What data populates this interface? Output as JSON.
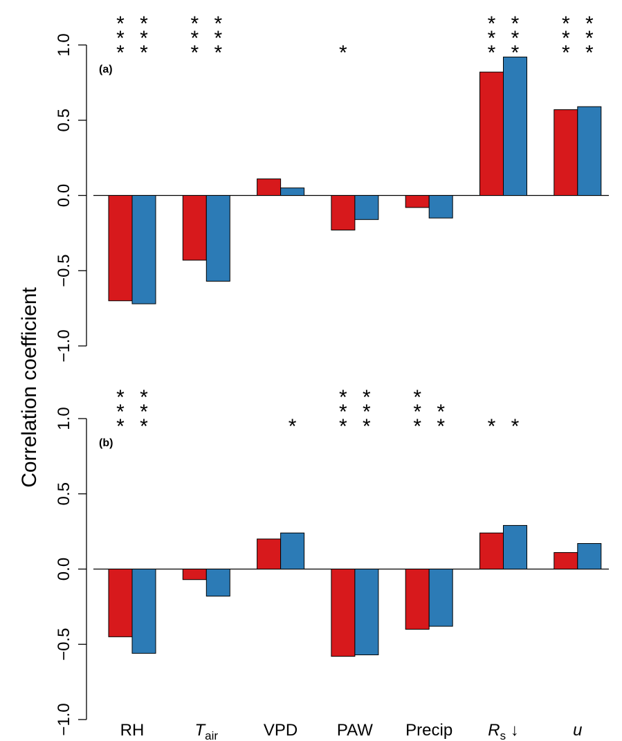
{
  "chart_data": {
    "type": "bar",
    "ylabel": "Correlation coefficient",
    "categories": [
      {
        "main": "RH",
        "sub": "",
        "italic": false
      },
      {
        "main": "T",
        "sub": "air",
        "italic": true
      },
      {
        "main": "VPD",
        "sub": "",
        "italic": false
      },
      {
        "main": "PAW",
        "sub": "",
        "italic": false
      },
      {
        "main": "Precip",
        "sub": "",
        "italic": false
      },
      {
        "main": "R",
        "sub": "s",
        "italic": true,
        "suffix": " ↓"
      },
      {
        "main": "u",
        "sub": "",
        "italic": true
      }
    ],
    "colors": [
      "#d7191c",
      "#2c7bb6"
    ],
    "ylim": [
      -1.0,
      1.0
    ],
    "yticks": [
      "-1.0",
      "-0.5",
      "0.0",
      "0.5",
      "1.0"
    ],
    "panels": [
      {
        "tag": "(a)",
        "series": [
          {
            "values": [
              -0.7,
              -0.43,
              0.11,
              -0.23,
              -0.08,
              0.82,
              0.57
            ]
          },
          {
            "values": [
              -0.72,
              -0.57,
              0.05,
              -0.16,
              -0.15,
              0.92,
              0.59
            ]
          }
        ],
        "significance": [
          [
            "***",
            "***"
          ],
          [
            "***",
            "***"
          ],
          [
            "",
            ""
          ],
          [
            "*",
            ""
          ],
          [
            "",
            ""
          ],
          [
            "***",
            "***"
          ],
          [
            "***",
            "***"
          ]
        ]
      },
      {
        "tag": "(b)",
        "series": [
          {
            "values": [
              -0.45,
              -0.07,
              0.2,
              -0.58,
              -0.4,
              0.24,
              0.11
            ]
          },
          {
            "values": [
              -0.56,
              -0.18,
              0.24,
              -0.57,
              -0.38,
              0.29,
              0.17
            ]
          }
        ],
        "significance": [
          [
            "***",
            "***"
          ],
          [
            "",
            ""
          ],
          [
            "",
            "*"
          ],
          [
            "***",
            "***"
          ],
          [
            "***",
            "**"
          ],
          [
            "*",
            "*"
          ],
          [
            "",
            ""
          ]
        ]
      }
    ]
  }
}
